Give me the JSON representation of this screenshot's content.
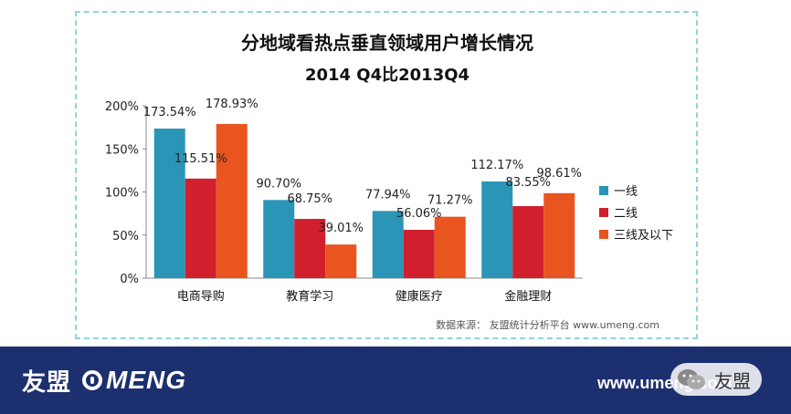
{
  "chart_data": {
    "type": "bar",
    "title": "分地域看热点垂直领域用户增长情况",
    "subtitle": "2014 Q4比2013Q4",
    "categories": [
      "电商导购",
      "教育学习",
      "健康医疗",
      "金融理财"
    ],
    "series": [
      {
        "name": "一线",
        "color": "#2a95b6",
        "values": [
          173.54,
          90.7,
          77.94,
          112.17
        ],
        "labels": [
          "173.54%",
          "90.70%",
          "77.94%",
          "112.17%"
        ]
      },
      {
        "name": "二线",
        "color": "#d11f2e",
        "values": [
          115.51,
          68.75,
          56.06,
          83.55
        ],
        "labels": [
          "115.51%",
          "68.75%",
          "56.06%",
          "83.55%"
        ]
      },
      {
        "name": "三线及以下",
        "color": "#e9551f",
        "values": [
          178.93,
          39.01,
          71.27,
          98.61
        ],
        "labels": [
          "178.93%",
          "39.01%",
          "71.27%",
          "98.61%"
        ]
      }
    ],
    "yticks": [
      0,
      50,
      100,
      150,
      200
    ],
    "ytick_labels": [
      "0%",
      "50%",
      "100%",
      "150%",
      "200%"
    ],
    "ylim": [
      0,
      200
    ],
    "grid": false,
    "legend": "right",
    "source": "数据来源： 友盟统计分析平台 www.umeng.com"
  },
  "footer": {
    "brand_cn": "友盟",
    "brand_en": "MENG",
    "url": "www.umeng.com",
    "wechat_name": "友盟"
  }
}
